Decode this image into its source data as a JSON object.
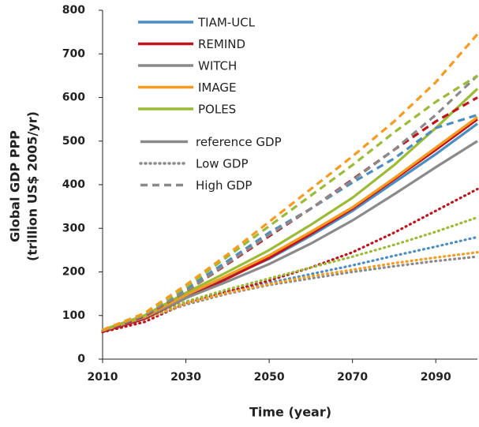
{
  "chart_data": {
    "type": "line",
    "x_label": "Time (year)",
    "y_label": [
      "Global GDP PPP",
      "(trillion US$ 2005/yr)"
    ],
    "x": [
      2010,
      2020,
      2030,
      2040,
      2050,
      2060,
      2070,
      2080,
      2090,
      2100
    ],
    "xlim": [
      2010,
      2100
    ],
    "xticks": [
      2010,
      2030,
      2050,
      2070,
      2090
    ],
    "ylim": [
      0,
      800
    ],
    "yticks": [
      0,
      100,
      200,
      300,
      400,
      500,
      600,
      700,
      800
    ],
    "grid": false,
    "legend": [
      {
        "name": "TIAM-UCL",
        "color": "#4a8dc4"
      },
      {
        "name": "REMIND",
        "color": "#c0141c"
      },
      {
        "name": "WITCH",
        "color": "#8a8a8a"
      },
      {
        "name": "IMAGE",
        "color": "#f79a1e"
      },
      {
        "name": "POLES",
        "color": "#9bbb35"
      },
      {
        "name": "reference GDP",
        "style": "solid",
        "color": "#8a8a8a"
      },
      {
        "name": "Low GDP",
        "style": "dotted",
        "color": "#8a8a8a"
      },
      {
        "name": "High GDP",
        "style": "dashed",
        "color": "#8a8a8a"
      }
    ],
    "series": [
      {
        "color": "#4a8dc4",
        "style": "dotted",
        "values": [
          65,
          92,
          130,
          155,
          175,
          195,
          215,
          237,
          258,
          280
        ]
      },
      {
        "color": "#c0141c",
        "style": "dotted",
        "values": [
          62,
          85,
          128,
          155,
          180,
          210,
          245,
          290,
          340,
          390
        ]
      },
      {
        "color": "#8a8a8a",
        "style": "dotted",
        "values": [
          65,
          92,
          125,
          150,
          170,
          185,
          200,
          213,
          225,
          235
        ]
      },
      {
        "color": "#f79a1e",
        "style": "dotted",
        "values": [
          65,
          92,
          128,
          152,
          172,
          190,
          205,
          220,
          233,
          245
        ]
      },
      {
        "color": "#9bbb35",
        "style": "dotted",
        "values": [
          66,
          95,
          132,
          160,
          185,
          210,
          235,
          262,
          292,
          325
        ]
      },
      {
        "color": "#4a8dc4",
        "style": "solid",
        "values": [
          65,
          95,
          145,
          188,
          230,
          283,
          340,
          405,
          470,
          540
        ]
      },
      {
        "color": "#c0141c",
        "style": "solid",
        "values": [
          63,
          92,
          140,
          185,
          232,
          287,
          345,
          412,
          480,
          550
        ]
      },
      {
        "color": "#8a8a8a",
        "style": "solid",
        "values": [
          65,
          95,
          140,
          178,
          218,
          265,
          318,
          378,
          440,
          500
        ]
      },
      {
        "color": "#f79a1e",
        "style": "solid",
        "values": [
          66,
          97,
          147,
          192,
          238,
          292,
          348,
          415,
          485,
          555
        ]
      },
      {
        "color": "#9bbb35",
        "style": "solid",
        "values": [
          67,
          100,
          152,
          200,
          250,
          308,
          370,
          445,
          530,
          620
        ]
      },
      {
        "color": "#4a8dc4",
        "style": "dashed",
        "values": [
          66,
          100,
          160,
          225,
          290,
          345,
          405,
          460,
          530,
          560
        ]
      },
      {
        "color": "#c0141c",
        "style": "dashed",
        "values": [
          64,
          98,
          155,
          218,
          282,
          345,
          412,
          480,
          545,
          600
        ]
      },
      {
        "color": "#8a8a8a",
        "style": "dashed",
        "values": [
          65,
          100,
          155,
          220,
          285,
          345,
          410,
          480,
          560,
          650
        ]
      },
      {
        "color": "#9bbb35",
        "style": "dashed",
        "values": [
          66,
          103,
          165,
          235,
          305,
          375,
          445,
          520,
          590,
          650
        ]
      },
      {
        "color": "#f79a1e",
        "style": "dashed",
        "values": [
          67,
          105,
          170,
          240,
          315,
          390,
          465,
          545,
          635,
          745
        ]
      }
    ]
  }
}
